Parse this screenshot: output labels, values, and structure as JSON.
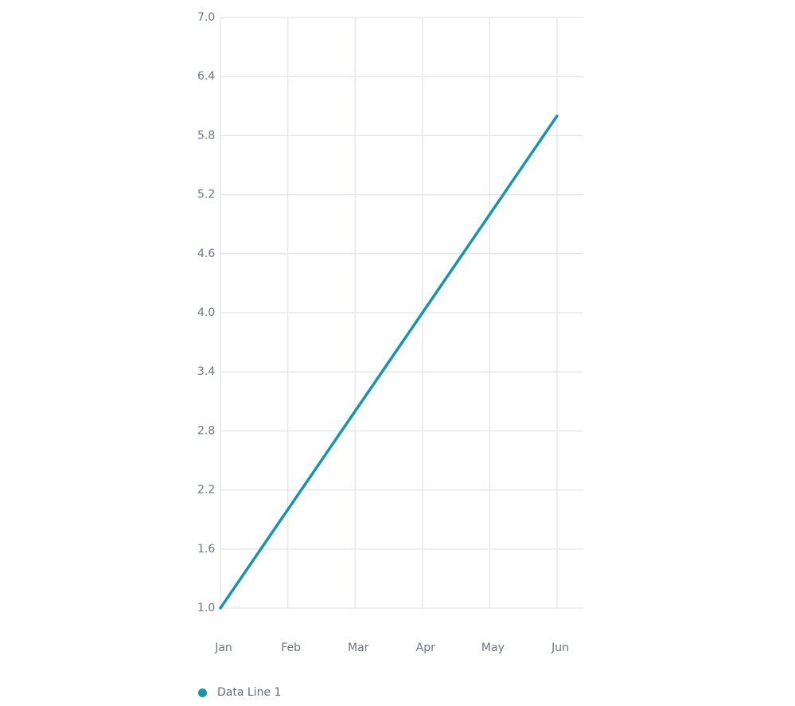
{
  "chart_data": {
    "type": "line",
    "categories": [
      "Jan",
      "Feb",
      "Mar",
      "Apr",
      "May",
      "Jun"
    ],
    "series": [
      {
        "name": "Data Line 1",
        "values": [
          1,
          2,
          3,
          4,
          5,
          6
        ],
        "color": "#1496ad"
      }
    ],
    "yticks": [
      "1.0",
      "1.6",
      "2.2",
      "2.8",
      "3.4",
      "4.0",
      "4.6",
      "5.2",
      "5.8",
      "6.4",
      "7.0"
    ],
    "ylim": [
      1.0,
      7.0
    ],
    "grid": true,
    "legend_position": "bottom-left",
    "title": "",
    "xlabel": "",
    "ylabel": ""
  }
}
